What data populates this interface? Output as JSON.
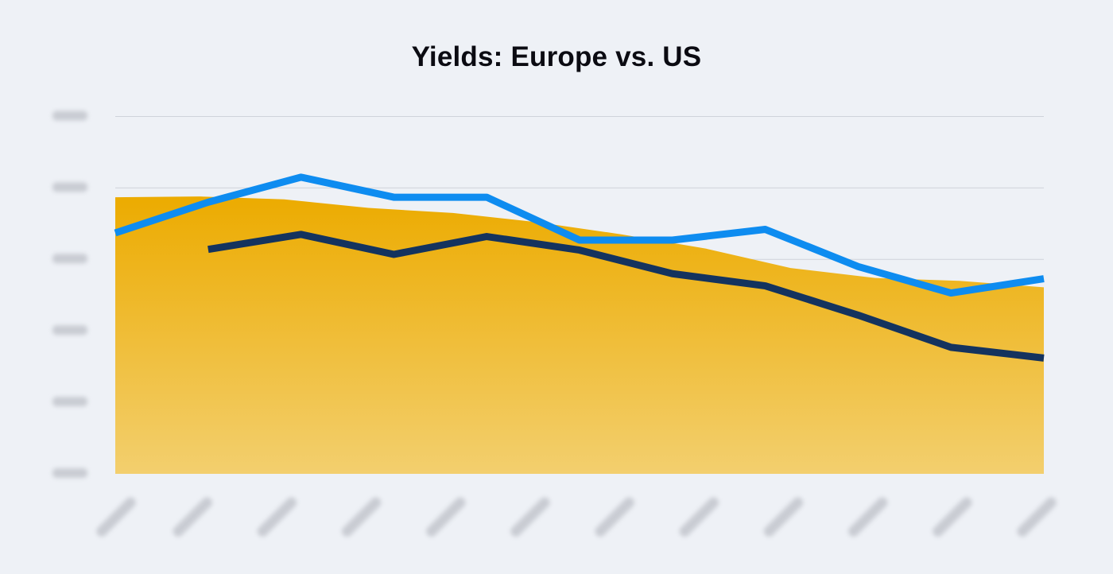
{
  "chart_data": {
    "type": "area",
    "title": "Yields: Europe vs. US",
    "xlabel": "",
    "ylabel": "",
    "ylim": [
      0,
      5.25
    ],
    "yticks": [
      0,
      1,
      2,
      3,
      4,
      5
    ],
    "grid": true,
    "legend": "none",
    "x_points": 12,
    "colors": {
      "area_top": "#ecab00",
      "area_bottom": "#f3cf6e",
      "series_light": "#0e8cf0",
      "series_dark": "#14335e",
      "grid": "#cfd3da",
      "background": "#eef1f6"
    },
    "series": [
      {
        "kind": "area",
        "values": [
          3.87,
          3.88,
          3.84,
          3.72,
          3.65,
          3.52,
          3.35,
          3.15,
          2.88,
          2.74,
          2.7,
          2.61
        ]
      },
      {
        "kind": "line",
        "values": [
          3.37,
          3.8,
          4.15,
          3.87,
          3.87,
          3.27,
          3.27,
          3.42,
          2.9,
          2.53,
          2.73
        ]
      },
      {
        "kind": "line",
        "values": [
          null,
          3.14,
          3.35,
          3.07,
          3.32,
          3.13,
          2.8,
          2.63,
          2.22,
          1.77,
          1.62
        ]
      }
    ]
  }
}
